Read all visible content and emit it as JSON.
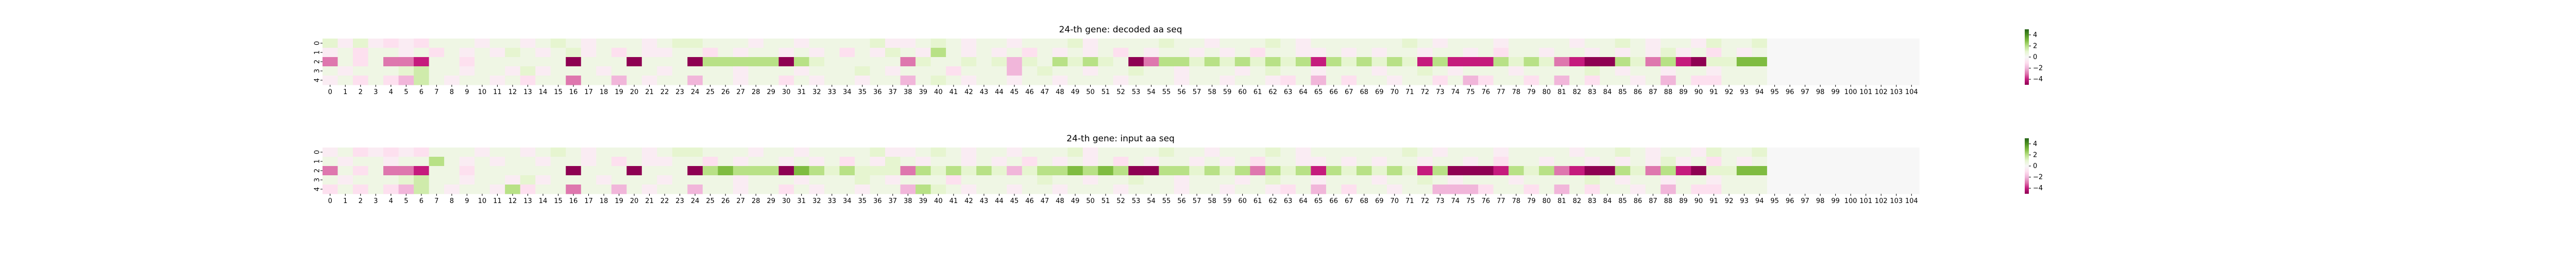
{
  "chart_data": [
    {
      "type": "heatmap",
      "title": "24-th gene: decoded aa seq",
      "x_ticks": [
        "0",
        "1",
        "2",
        "3",
        "4",
        "5",
        "6",
        "7",
        "8",
        "9",
        "10",
        "11",
        "12",
        "13",
        "14",
        "15",
        "16",
        "17",
        "18",
        "19",
        "20",
        "21",
        "22",
        "23",
        "24",
        "25",
        "26",
        "27",
        "28",
        "29",
        "30",
        "31",
        "32",
        "33",
        "34",
        "35",
        "36",
        "37",
        "38",
        "39",
        "40",
        "41",
        "42",
        "43",
        "44",
        "45",
        "46",
        "47",
        "48",
        "49",
        "50",
        "51",
        "52",
        "53",
        "54",
        "55",
        "56",
        "57",
        "58",
        "59",
        "60",
        "61",
        "62",
        "63",
        "64",
        "65",
        "66",
        "67",
        "68",
        "69",
        "70",
        "71",
        "72",
        "73",
        "74",
        "75",
        "76",
        "77",
        "78",
        "79",
        "80",
        "81",
        "82",
        "83",
        "84",
        "85",
        "86",
        "87",
        "88",
        "89",
        "90",
        "91",
        "92",
        "93",
        "94",
        "95",
        "96",
        "97",
        "98",
        "99",
        "100",
        "101",
        "102",
        "103",
        "104"
      ],
      "y_ticks": [
        "0",
        "1",
        "2",
        "3",
        "4"
      ],
      "colorbar": {
        "ticks": [
          4,
          2,
          0,
          -2,
          -4
        ],
        "range": [
          -5,
          5
        ],
        "colormap": "PiYG"
      },
      "matrix": [
        [
          1,
          -0.5,
          1,
          -0.5,
          -1,
          -0.5,
          -1,
          0.5,
          0.5,
          0.5,
          -0.5,
          0.5,
          0.5,
          -0.5,
          0.5,
          1,
          0.5,
          -0.5,
          0.5,
          0.5,
          0.5,
          -0.5,
          0.5,
          1,
          1,
          0.5,
          0.5,
          0.5,
          -0.5,
          0.5,
          0.5,
          -0.5,
          0.5,
          0.5,
          0.5,
          0.5,
          1,
          -0.5,
          -0.5,
          0.5,
          1,
          0.5,
          -0.5,
          0.5,
          0.5,
          -0.5,
          0.5,
          0.5,
          0.5,
          1,
          -0.5,
          0.5,
          0.5,
          0.5,
          0.5,
          1,
          0.5,
          0.5,
          -0.5,
          0.5,
          0.5,
          0.5,
          1,
          0.5,
          -0.5,
          0.5,
          0.5,
          0.5,
          0.5,
          0.5,
          0.5,
          1,
          0.5,
          -0.5,
          0.5,
          0.5,
          0.5,
          -0.5,
          0.5,
          0.5,
          0.5,
          0.5,
          -0.5,
          0.5,
          0.5,
          1,
          0.5,
          -0.5,
          0.5,
          0.5,
          -0.5,
          1,
          0.5,
          0.5,
          1,
          0,
          0,
          0,
          0,
          0,
          0,
          0,
          0,
          0,
          0
        ],
        [
          -0.5,
          0.5,
          -1,
          0.5,
          0.5,
          -0.5,
          0.5,
          -1,
          0.5,
          -0.5,
          0.5,
          -0.5,
          1,
          0.5,
          -0.5,
          0.5,
          1,
          -0.5,
          0.5,
          -1,
          0.5,
          -0.5,
          -0.5,
          0.5,
          0.5,
          -1,
          0.5,
          -0.5,
          0.5,
          0.5,
          -0.5,
          0.5,
          -0.5,
          0.5,
          -1,
          0.5,
          -0.5,
          1,
          0.5,
          -0.5,
          2,
          0.5,
          -0.5,
          0.5,
          -0.5,
          0.5,
          -1,
          0.5,
          -0.5,
          0.5,
          -0.5,
          0.5,
          -1,
          0.5,
          -0.5,
          0.5,
          0.5,
          -0.5,
          0.5,
          -0.5,
          0.5,
          -1,
          0.5,
          0.5,
          -0.5,
          -0.5,
          0.5,
          -0.5,
          0.5,
          -0.5,
          0.5,
          0.5,
          -0.5,
          0.5,
          0.5,
          -0.5,
          0.5,
          -1,
          0.5,
          0.5,
          -0.5,
          0.5,
          0.5,
          -0.5,
          0.5,
          -0.5,
          0.5,
          -0.5,
          1,
          -0.5,
          0.5,
          -1,
          0.5,
          -0.5,
          0.5,
          0,
          0,
          0,
          0,
          0,
          0,
          0,
          0,
          0,
          0
        ],
        [
          -3,
          0.5,
          -1,
          0.5,
          -3,
          -3,
          -4,
          0.5,
          0.5,
          -1,
          0.5,
          0.5,
          0.5,
          0.5,
          0.5,
          0.5,
          -5,
          0.5,
          0.5,
          0.5,
          -5,
          0.5,
          0.5,
          0.5,
          -5,
          2,
          2,
          2,
          2,
          2,
          -5,
          2,
          1,
          0.5,
          0.5,
          0.5,
          0.5,
          0.5,
          -3,
          1,
          0.5,
          0.5,
          1,
          0.5,
          1,
          -2,
          1,
          0.5,
          2,
          1,
          2,
          1,
          0.5,
          -5,
          -3,
          2,
          2,
          1,
          2,
          1,
          2,
          1,
          2,
          1,
          2,
          -4,
          2,
          1,
          2,
          1,
          2,
          1,
          -4,
          2,
          -4,
          -4,
          -4,
          2,
          1,
          2,
          1,
          -3,
          -4,
          -5,
          -5,
          2,
          1,
          -3,
          2,
          -4,
          -5,
          1,
          1,
          3,
          3,
          0,
          0,
          0,
          0,
          0,
          0,
          0,
          0,
          0,
          0
        ],
        [
          0.5,
          -0.5,
          0.5,
          0.5,
          0.5,
          1,
          1.5,
          0.5,
          0.5,
          -0.5,
          0.5,
          0.5,
          -0.5,
          1,
          -0.5,
          0.5,
          0.5,
          0.5,
          -0.5,
          0.5,
          0.5,
          0.5,
          -0.5,
          0.5,
          0.5,
          0.5,
          0.5,
          -0.5,
          0.5,
          0.5,
          0.5,
          -0.5,
          0.5,
          0.5,
          0.5,
          1,
          0.5,
          -0.5,
          0.5,
          0.5,
          0.5,
          -1,
          0.5,
          0.5,
          0.5,
          -2,
          0.5,
          1,
          0.5,
          0.5,
          -0.5,
          0.5,
          0.5,
          1,
          0.5,
          0.5,
          -0.5,
          0.5,
          0.5,
          0.5,
          -0.5,
          0.5,
          1,
          0.5,
          0.5,
          -0.5,
          0.5,
          0.5,
          0.5,
          -0.5,
          0.5,
          0.5,
          1,
          0.5,
          -0.5,
          0.5,
          0.5,
          0.5,
          -0.5,
          0.5,
          0.5,
          0.5,
          0.5,
          1,
          0.5,
          -0.5,
          0.5,
          0.5,
          -0.5,
          0.5,
          0.5,
          -0.5,
          0.5,
          0.5,
          0.5,
          0,
          0,
          0,
          0,
          0,
          0,
          0,
          0,
          0,
          0
        ],
        [
          -0.5,
          0.5,
          -1,
          0.5,
          -1,
          -2,
          1.5,
          0.5,
          -0.5,
          0.5,
          0.5,
          -0.5,
          0.5,
          -1,
          0.5,
          0.5,
          -3,
          0.5,
          0.5,
          -2,
          0.5,
          -0.5,
          0.5,
          0.5,
          -2,
          0.5,
          0.5,
          -0.5,
          0.5,
          0.5,
          -1,
          0.5,
          -0.5,
          0.5,
          0.5,
          -0.5,
          0.5,
          0.5,
          -2,
          0.5,
          1,
          0.5,
          -0.5,
          0.5,
          0.5,
          -0.5,
          0.5,
          0.5,
          -0.5,
          0.5,
          0.5,
          0.5,
          -0.5,
          0.5,
          0.5,
          0.5,
          -0.5,
          0.5,
          0.5,
          -0.5,
          0.5,
          0.5,
          -0.5,
          -1,
          0.5,
          -2,
          0.5,
          -1,
          0.5,
          0.5,
          -0.5,
          0.5,
          0.5,
          -1,
          0.5,
          -2,
          -1,
          0.5,
          0.5,
          -1,
          0.5,
          -2,
          0.5,
          -1,
          0.5,
          0.5,
          -0.5,
          0.5,
          -2,
          0.5,
          -1,
          -1,
          0.5,
          0.5,
          0.5,
          0,
          0,
          0,
          0,
          0,
          0,
          0,
          0,
          0,
          0
        ]
      ]
    },
    {
      "type": "heatmap",
      "title": "24-th gene: input aa seq",
      "x_ticks": [
        "0",
        "1",
        "2",
        "3",
        "4",
        "5",
        "6",
        "7",
        "8",
        "9",
        "10",
        "11",
        "12",
        "13",
        "14",
        "15",
        "16",
        "17",
        "18",
        "19",
        "20",
        "21",
        "22",
        "23",
        "24",
        "25",
        "26",
        "27",
        "28",
        "29",
        "30",
        "31",
        "32",
        "33",
        "34",
        "35",
        "36",
        "37",
        "38",
        "39",
        "40",
        "41",
        "42",
        "43",
        "44",
        "45",
        "46",
        "47",
        "48",
        "49",
        "50",
        "51",
        "52",
        "53",
        "54",
        "55",
        "56",
        "57",
        "58",
        "59",
        "60",
        "61",
        "62",
        "63",
        "64",
        "65",
        "66",
        "67",
        "68",
        "69",
        "70",
        "71",
        "72",
        "73",
        "74",
        "75",
        "76",
        "77",
        "78",
        "79",
        "80",
        "81",
        "82",
        "83",
        "84",
        "85",
        "86",
        "87",
        "88",
        "89",
        "90",
        "91",
        "92",
        "93",
        "94",
        "95",
        "96",
        "97",
        "98",
        "99",
        "100",
        "101",
        "102",
        "103",
        "104"
      ],
      "y_ticks": [
        "0",
        "1",
        "2",
        "3",
        "4"
      ],
      "colorbar": {
        "ticks": [
          4,
          2,
          0,
          -2,
          -4
        ],
        "range": [
          -5,
          5
        ],
        "colormap": "PiYG"
      },
      "matrix": [
        [
          -0.5,
          0.5,
          -1,
          -0.5,
          -1,
          -0.5,
          -1,
          0.5,
          0.5,
          0.5,
          -0.5,
          0.5,
          0.5,
          -0.5,
          0.5,
          1,
          0.5,
          -0.5,
          0.5,
          0.5,
          0.5,
          -0.5,
          0.5,
          1,
          1,
          0.5,
          0.5,
          0.5,
          -0.5,
          0.5,
          0.5,
          -0.5,
          0.5,
          0.5,
          0.5,
          0.5,
          1,
          -0.5,
          -0.5,
          0.5,
          1,
          0.5,
          -0.5,
          0.5,
          0.5,
          -0.5,
          0.5,
          0.5,
          0.5,
          1,
          -0.5,
          0.5,
          0.5,
          0.5,
          0.5,
          1,
          0.5,
          0.5,
          -0.5,
          0.5,
          0.5,
          0.5,
          1,
          0.5,
          -0.5,
          0.5,
          0.5,
          0.5,
          0.5,
          0.5,
          0.5,
          1,
          0.5,
          -0.5,
          0.5,
          0.5,
          0.5,
          -0.5,
          0.5,
          0.5,
          0.5,
          0.5,
          -0.5,
          0.5,
          0.5,
          1,
          0.5,
          -0.5,
          0.5,
          0.5,
          -0.5,
          1,
          0.5,
          0.5,
          1,
          0,
          0,
          0,
          0,
          0,
          0,
          0,
          0,
          0,
          0
        ],
        [
          0.5,
          -0.5,
          0.5,
          0.5,
          -0.5,
          0.5,
          0.5,
          2,
          0.5,
          -0.5,
          0.5,
          -0.5,
          0.5,
          0.5,
          -0.5,
          0.5,
          0.5,
          -0.5,
          0.5,
          -1,
          0.5,
          -0.5,
          -0.5,
          0.5,
          0.5,
          -1,
          0.5,
          -0.5,
          0.5,
          0.5,
          -0.5,
          0.5,
          -0.5,
          0.5,
          -1,
          0.5,
          -0.5,
          1,
          0.5,
          -0.5,
          0.5,
          0.5,
          -0.5,
          0.5,
          -0.5,
          0.5,
          -1,
          0.5,
          -0.5,
          0.5,
          -0.5,
          0.5,
          -1,
          0.5,
          -0.5,
          0.5,
          0.5,
          -0.5,
          0.5,
          -0.5,
          0.5,
          -1,
          0.5,
          0.5,
          -0.5,
          -0.5,
          0.5,
          -0.5,
          0.5,
          -0.5,
          0.5,
          0.5,
          -0.5,
          0.5,
          0.5,
          -0.5,
          0.5,
          -1,
          0.5,
          0.5,
          -0.5,
          0.5,
          0.5,
          -0.5,
          0.5,
          -0.5,
          0.5,
          -0.5,
          1,
          -0.5,
          0.5,
          -1,
          0.5,
          -0.5,
          0.5,
          0,
          0,
          0,
          0,
          0,
          0,
          0,
          0,
          0,
          0
        ],
        [
          -3,
          0.5,
          -1,
          0.5,
          -3,
          -3,
          -4,
          0.5,
          0.5,
          -1,
          0.5,
          0.5,
          0.5,
          0.5,
          0.5,
          0.5,
          -5,
          0.5,
          0.5,
          0.5,
          -5,
          0.5,
          0.5,
          0.5,
          -5,
          2,
          3,
          2,
          2,
          2,
          -5,
          3,
          2,
          1,
          2,
          1,
          1,
          1,
          -3,
          2,
          1,
          2,
          1,
          2,
          1,
          -2,
          1,
          2,
          2,
          3,
          2,
          3,
          2,
          -5,
          -5,
          2,
          2,
          1,
          2,
          1,
          2,
          -3,
          2,
          1,
          2,
          -4,
          2,
          1,
          2,
          1,
          2,
          1,
          -4,
          2,
          -5,
          -5,
          -5,
          -4,
          2,
          1,
          2,
          -3,
          -4,
          -5,
          -5,
          2,
          1,
          -3,
          2,
          -4,
          -5,
          1,
          1,
          3,
          3,
          0,
          0,
          0,
          0,
          0,
          0,
          0,
          0,
          0,
          0
        ],
        [
          0.5,
          -0.5,
          0.5,
          0.5,
          0.5,
          1,
          1.5,
          0.5,
          0.5,
          -0.5,
          0.5,
          0.5,
          -0.5,
          1,
          -0.5,
          0.5,
          0.5,
          0.5,
          -0.5,
          0.5,
          0.5,
          0.5,
          -0.5,
          0.5,
          0.5,
          0.5,
          0.5,
          -0.5,
          0.5,
          0.5,
          0.5,
          -0.5,
          0.5,
          0.5,
          0.5,
          1,
          0.5,
          -0.5,
          0.5,
          0.5,
          0.5,
          -1,
          0.5,
          0.5,
          0.5,
          0.5,
          0.5,
          1,
          0.5,
          0.5,
          -0.5,
          0.5,
          0.5,
          1,
          0.5,
          0.5,
          -0.5,
          0.5,
          0.5,
          0.5,
          -0.5,
          0.5,
          1,
          0.5,
          0.5,
          -0.5,
          0.5,
          0.5,
          0.5,
          -0.5,
          0.5,
          0.5,
          1,
          0.5,
          -0.5,
          0.5,
          0.5,
          0.5,
          -0.5,
          0.5,
          0.5,
          0.5,
          0.5,
          1,
          0.5,
          -0.5,
          0.5,
          0.5,
          -0.5,
          0.5,
          0.5,
          -0.5,
          0.5,
          0.5,
          0.5,
          0,
          0,
          0,
          0,
          0,
          0,
          0,
          0,
          0,
          0
        ],
        [
          -1,
          0.5,
          -1,
          0.5,
          -1,
          -2,
          1.5,
          0.5,
          -0.5,
          0.5,
          0.5,
          -0.5,
          2,
          -1,
          0.5,
          0.5,
          -3,
          0.5,
          0.5,
          -2,
          0.5,
          -0.5,
          0.5,
          0.5,
          -2,
          0.5,
          0.5,
          -0.5,
          0.5,
          0.5,
          -1,
          0.5,
          -0.5,
          0.5,
          0.5,
          -0.5,
          0.5,
          0.5,
          -2,
          2,
          1,
          0.5,
          -0.5,
          0.5,
          0.5,
          -0.5,
          0.5,
          0.5,
          -0.5,
          0.5,
          0.5,
          0.5,
          -0.5,
          0.5,
          0.5,
          0.5,
          -0.5,
          0.5,
          0.5,
          -0.5,
          0.5,
          0.5,
          -0.5,
          -1,
          0.5,
          -2,
          0.5,
          -1,
          0.5,
          0.5,
          -0.5,
          0.5,
          0.5,
          -2,
          -2,
          -2,
          -1,
          0.5,
          0.5,
          -1,
          0.5,
          -2,
          0.5,
          -1,
          0.5,
          0.5,
          -0.5,
          0.5,
          -2,
          0.5,
          -1,
          -1,
          0.5,
          0.5,
          0.5,
          0,
          0,
          0,
          0,
          0,
          0,
          0,
          0,
          0,
          0
        ]
      ]
    }
  ]
}
